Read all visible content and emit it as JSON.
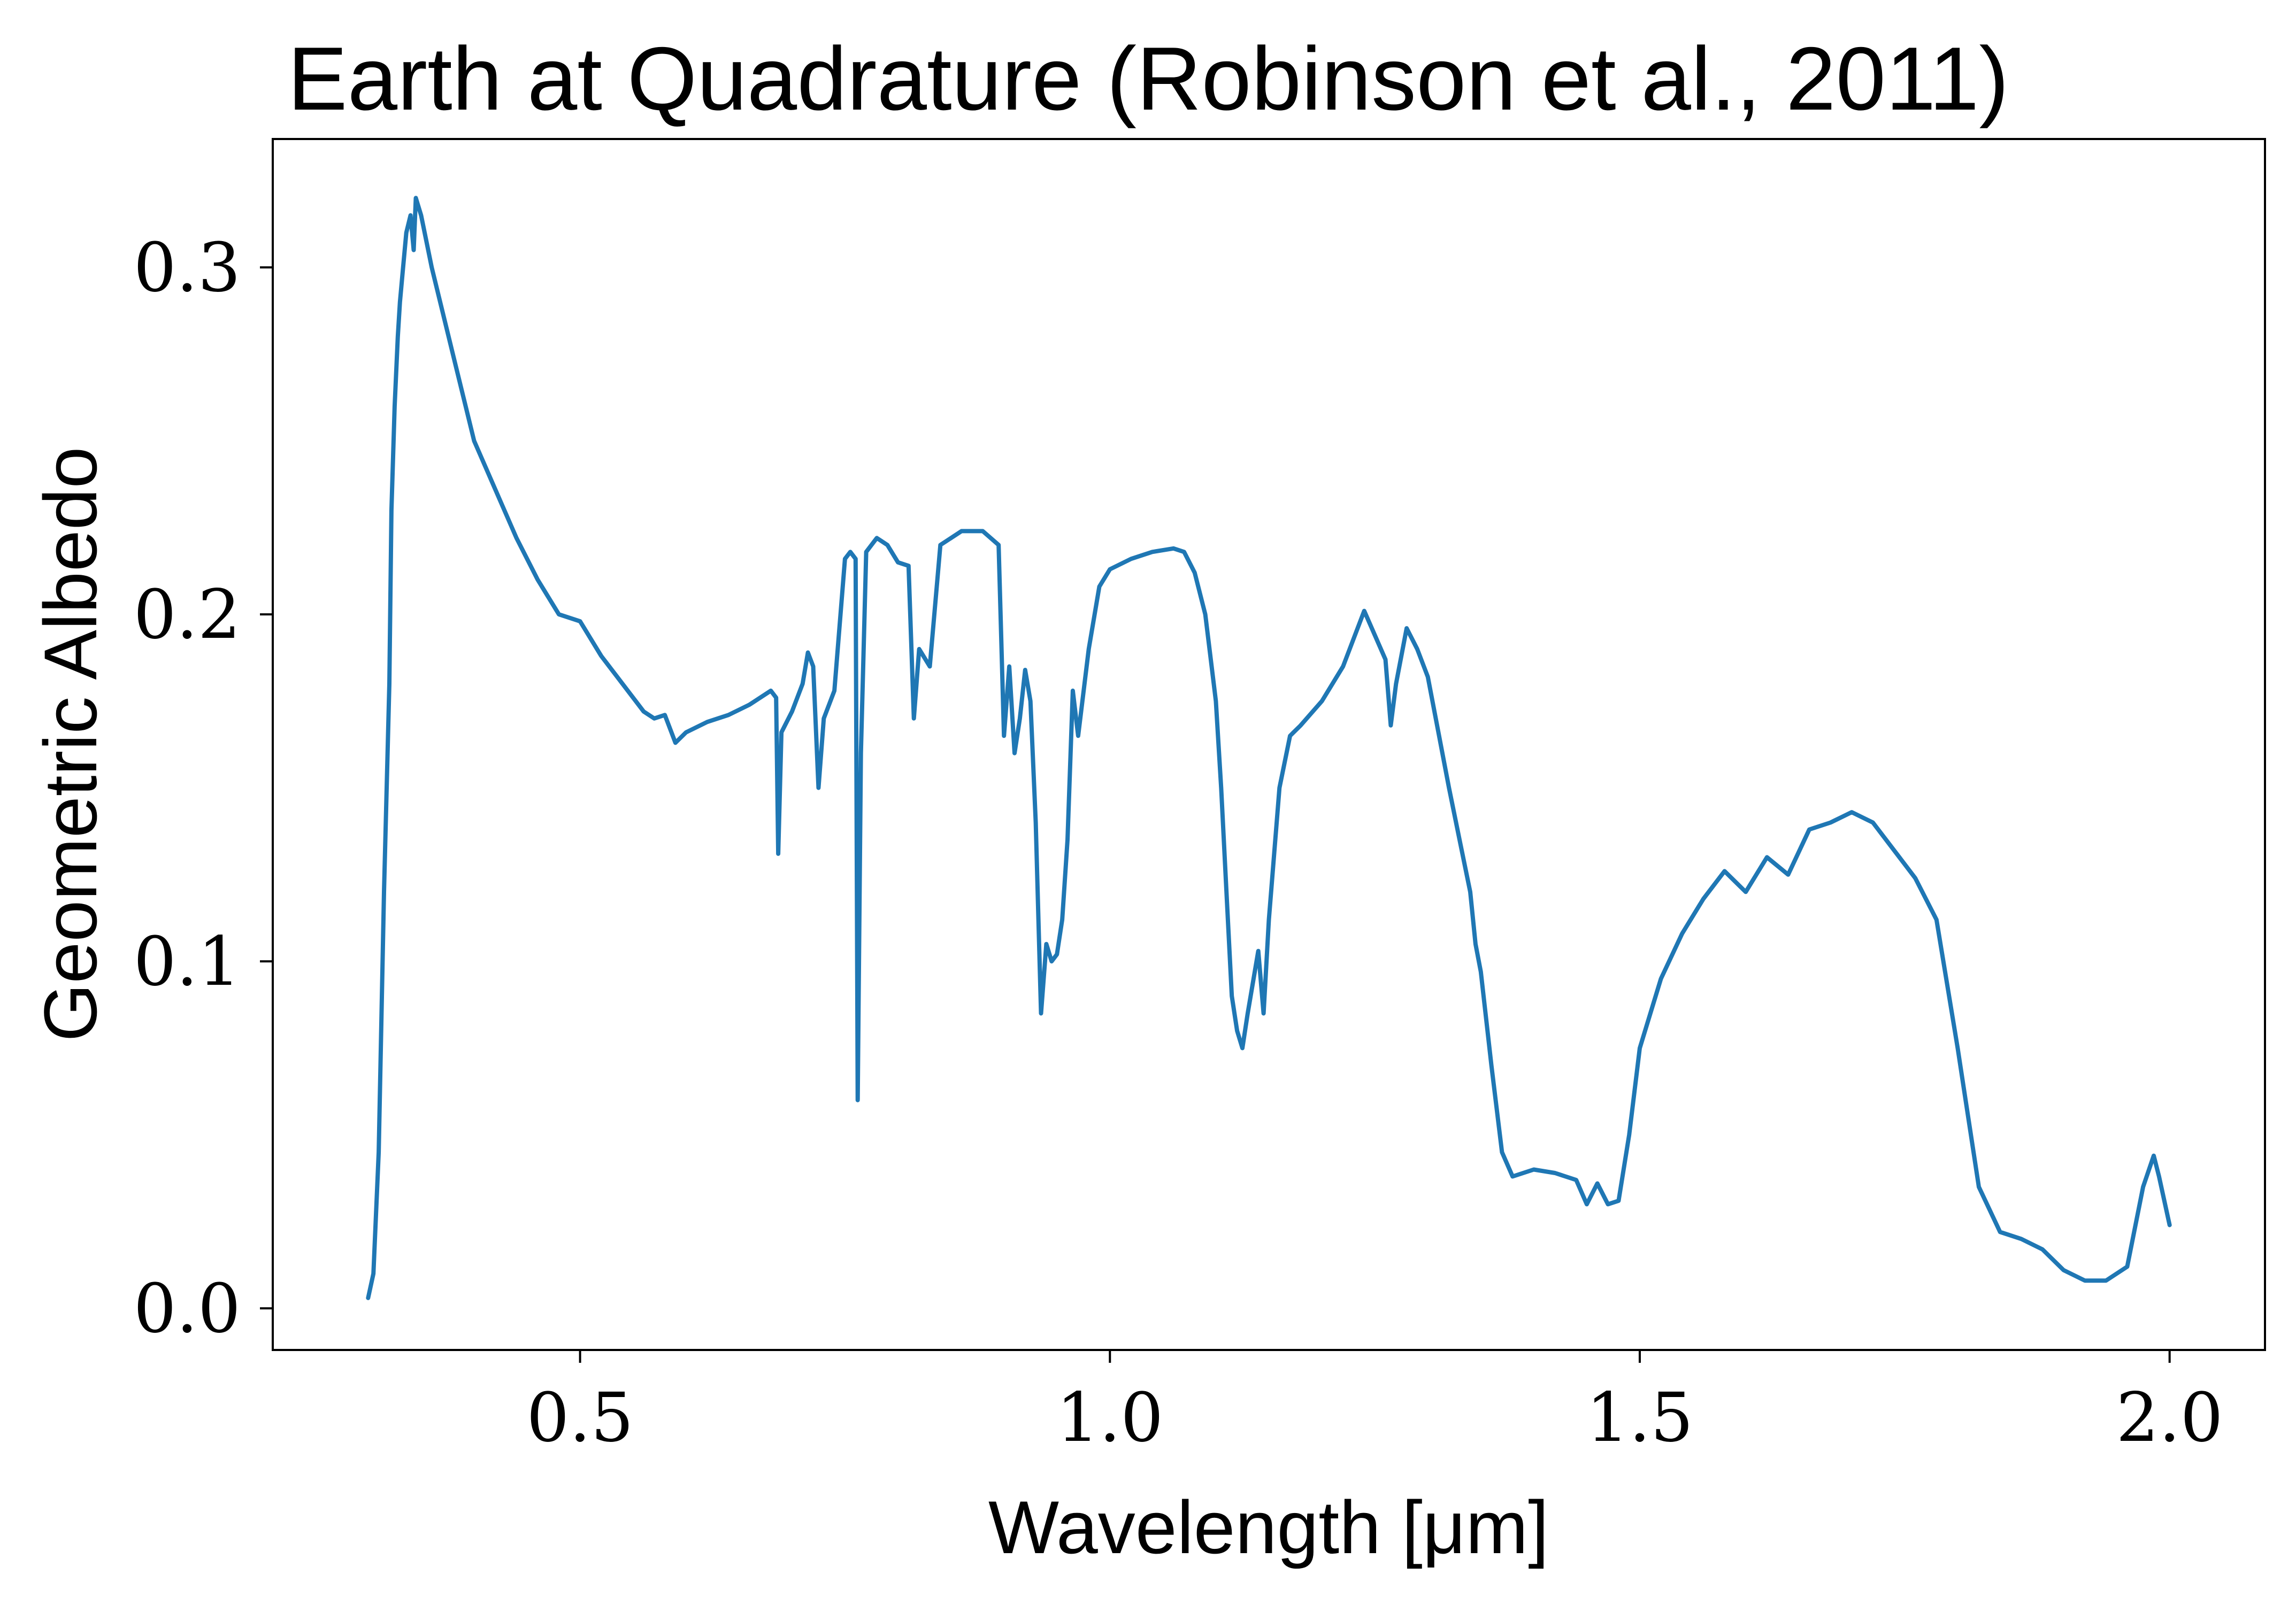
{
  "chart_data": {
    "type": "line",
    "title": "Earth at Quadrature (Robinson et al., 2011)",
    "xlabel": "Wavelength [μm]",
    "ylabel": "Geometric Albedo",
    "xlim": [
      0.21,
      2.09
    ],
    "ylim": [
      -0.012,
      0.337
    ],
    "xticks": [
      0.5,
      1.0,
      1.5,
      2.0
    ],
    "xtick_labels": [
      "0.5",
      "1.0",
      "1.5",
      "2.0"
    ],
    "yticks": [
      0.0,
      0.1,
      0.2,
      0.3
    ],
    "ytick_labels": [
      "0.0",
      "0.1",
      "0.2",
      "0.3"
    ],
    "grid": false,
    "series": [
      {
        "color": "#1f77b4",
        "x": [
          0.3,
          0.305,
          0.31,
          0.315,
          0.32,
          0.322,
          0.325,
          0.328,
          0.33,
          0.333,
          0.336,
          0.34,
          0.343,
          0.345,
          0.35,
          0.36,
          0.38,
          0.4,
          0.42,
          0.44,
          0.46,
          0.48,
          0.5,
          0.52,
          0.54,
          0.56,
          0.57,
          0.58,
          0.59,
          0.6,
          0.62,
          0.64,
          0.66,
          0.68,
          0.685,
          0.687,
          0.69,
          0.7,
          0.71,
          0.715,
          0.72,
          0.725,
          0.73,
          0.74,
          0.75,
          0.755,
          0.76,
          0.762,
          0.765,
          0.77,
          0.78,
          0.79,
          0.8,
          0.81,
          0.815,
          0.82,
          0.83,
          0.84,
          0.86,
          0.88,
          0.895,
          0.9,
          0.905,
          0.91,
          0.915,
          0.92,
          0.925,
          0.93,
          0.935,
          0.94,
          0.945,
          0.95,
          0.955,
          0.96,
          0.965,
          0.97,
          0.98,
          0.99,
          1.0,
          1.02,
          1.04,
          1.06,
          1.07,
          1.08,
          1.09,
          1.1,
          1.105,
          1.11,
          1.115,
          1.12,
          1.125,
          1.13,
          1.14,
          1.145,
          1.15,
          1.16,
          1.17,
          1.18,
          1.2,
          1.22,
          1.24,
          1.26,
          1.265,
          1.27,
          1.28,
          1.29,
          1.3,
          1.32,
          1.33,
          1.34,
          1.345,
          1.35,
          1.36,
          1.37,
          1.38,
          1.4,
          1.42,
          1.44,
          1.45,
          1.46,
          1.47,
          1.48,
          1.49,
          1.5,
          1.52,
          1.54,
          1.56,
          1.58,
          1.6,
          1.62,
          1.64,
          1.66,
          1.68,
          1.7,
          1.72,
          1.74,
          1.76,
          1.78,
          1.8,
          1.82,
          1.84,
          1.86,
          1.88,
          1.9,
          1.92,
          1.94,
          1.96,
          1.975,
          1.985,
          1.99,
          2.0
        ],
        "y": [
          0.003,
          0.01,
          0.045,
          0.12,
          0.18,
          0.23,
          0.26,
          0.28,
          0.29,
          0.3,
          0.31,
          0.315,
          0.305,
          0.32,
          0.315,
          0.3,
          0.275,
          0.25,
          0.236,
          0.222,
          0.21,
          0.2,
          0.198,
          0.188,
          0.18,
          0.172,
          0.17,
          0.171,
          0.163,
          0.166,
          0.169,
          0.171,
          0.174,
          0.178,
          0.176,
          0.131,
          0.166,
          0.172,
          0.18,
          0.189,
          0.185,
          0.15,
          0.17,
          0.178,
          0.216,
          0.218,
          0.216,
          0.06,
          0.16,
          0.218,
          0.222,
          0.22,
          0.215,
          0.214,
          0.17,
          0.19,
          0.185,
          0.22,
          0.224,
          0.224,
          0.22,
          0.165,
          0.185,
          0.16,
          0.17,
          0.184,
          0.175,
          0.14,
          0.085,
          0.105,
          0.1,
          0.102,
          0.112,
          0.135,
          0.178,
          0.165,
          0.19,
          0.208,
          0.213,
          0.216,
          0.218,
          0.219,
          0.218,
          0.212,
          0.2,
          0.175,
          0.15,
          0.12,
          0.09,
          0.08,
          0.075,
          0.085,
          0.103,
          0.085,
          0.112,
          0.15,
          0.165,
          0.168,
          0.175,
          0.185,
          0.201,
          0.187,
          0.168,
          0.18,
          0.196,
          0.19,
          0.182,
          0.15,
          0.135,
          0.12,
          0.105,
          0.097,
          0.07,
          0.045,
          0.038,
          0.04,
          0.039,
          0.037,
          0.03,
          0.036,
          0.03,
          0.031,
          0.05,
          0.075,
          0.095,
          0.108,
          0.118,
          0.126,
          0.12,
          0.13,
          0.125,
          0.138,
          0.14,
          0.143,
          0.14,
          0.132,
          0.124,
          0.112,
          0.075,
          0.035,
          0.022,
          0.02,
          0.017,
          0.011,
          0.008,
          0.008,
          0.012,
          0.035,
          0.044,
          0.038,
          0.024
        ]
      }
    ]
  }
}
